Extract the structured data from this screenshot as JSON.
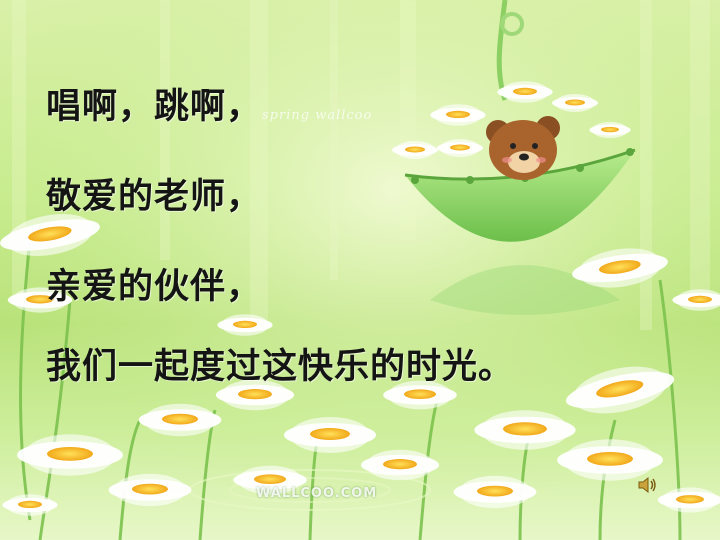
{
  "verse": {
    "line1": "唱啊，跳啊，",
    "line2": "敬爱的老师，",
    "line3": "亲爱的伙伴，",
    "line4": "我们一起度过这快乐的时光。"
  },
  "watermarks": {
    "spring": "spring wallcoo",
    "site": "WALLCOO.COM"
  },
  "icons": {
    "audio": "speaker-icon"
  },
  "colors": {
    "background": "#c8ec8f",
    "text": "#141414",
    "petal": "#ffffff",
    "flower_center": "#f7c51e",
    "umbrella": "#8fd46a"
  }
}
